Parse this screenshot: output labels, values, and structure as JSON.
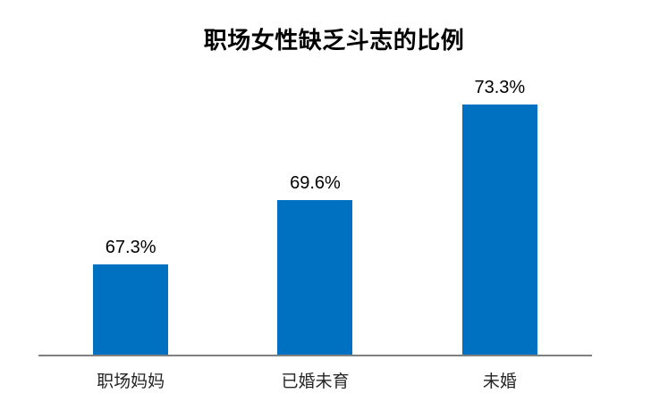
{
  "chart_data": {
    "type": "bar",
    "title": "职场女性缺乏斗志的比例",
    "categories": [
      "职场妈妈",
      "已婚未育",
      "未婚"
    ],
    "values": [
      67.3,
      69.6,
      73.3
    ],
    "labels": [
      "67.3%",
      "69.6%",
      "73.3%"
    ],
    "xlabel": "",
    "ylabel": "",
    "ylim": [
      64,
      74
    ],
    "bar_color": "#0070C0",
    "axis_color": "#808080",
    "title_color": "#000000",
    "label_color": "#000000",
    "category_color": "#262626",
    "grid": false,
    "legend": false
  }
}
